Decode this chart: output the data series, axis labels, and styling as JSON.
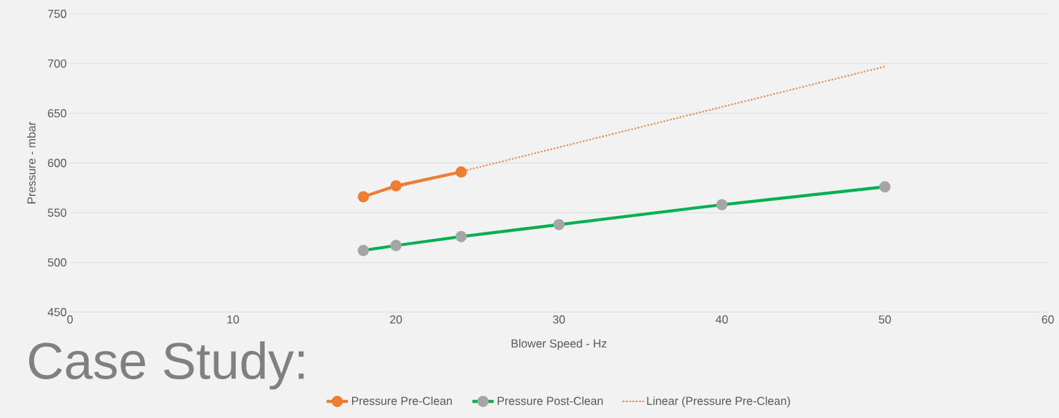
{
  "chart_data": {
    "type": "line",
    "xlabel": "Blower Speed - Hz",
    "ylabel": "Pressure - mbar",
    "xlim": [
      0,
      60
    ],
    "xticks": [
      0,
      10,
      20,
      30,
      40,
      50,
      60
    ],
    "ylim": [
      450,
      750
    ],
    "yticks": [
      450,
      500,
      550,
      600,
      650,
      700,
      750
    ],
    "grid": "y",
    "legend": "bottom",
    "marker": "circle",
    "line_style": "solid",
    "series": [
      {
        "name": "Pressure Pre-Clean",
        "color": "#ed7d31",
        "x": [
          18,
          20,
          24
        ],
        "values": [
          566,
          577,
          591
        ]
      },
      {
        "name": "Pressure Post-Clean",
        "color": "#00b050",
        "colors": [
          "#a5a5a5",
          "#a5a5a5",
          "#a5a5a5",
          "#a5a5a5",
          "#a5a5a5",
          "#a5a5a5"
        ],
        "x": [
          18,
          20,
          24,
          30,
          40,
          50
        ],
        "values": [
          512,
          517,
          526,
          538,
          558,
          576
        ]
      },
      {
        "name": "Linear (Pressure Pre-Clean)",
        "color": "#ed7d31",
        "marker": "none",
        "line_style": "dotted",
        "x": [
          18,
          50
        ],
        "values": [
          567,
          697
        ]
      }
    ],
    "annotations": [
      "Case Study:"
    ]
  }
}
